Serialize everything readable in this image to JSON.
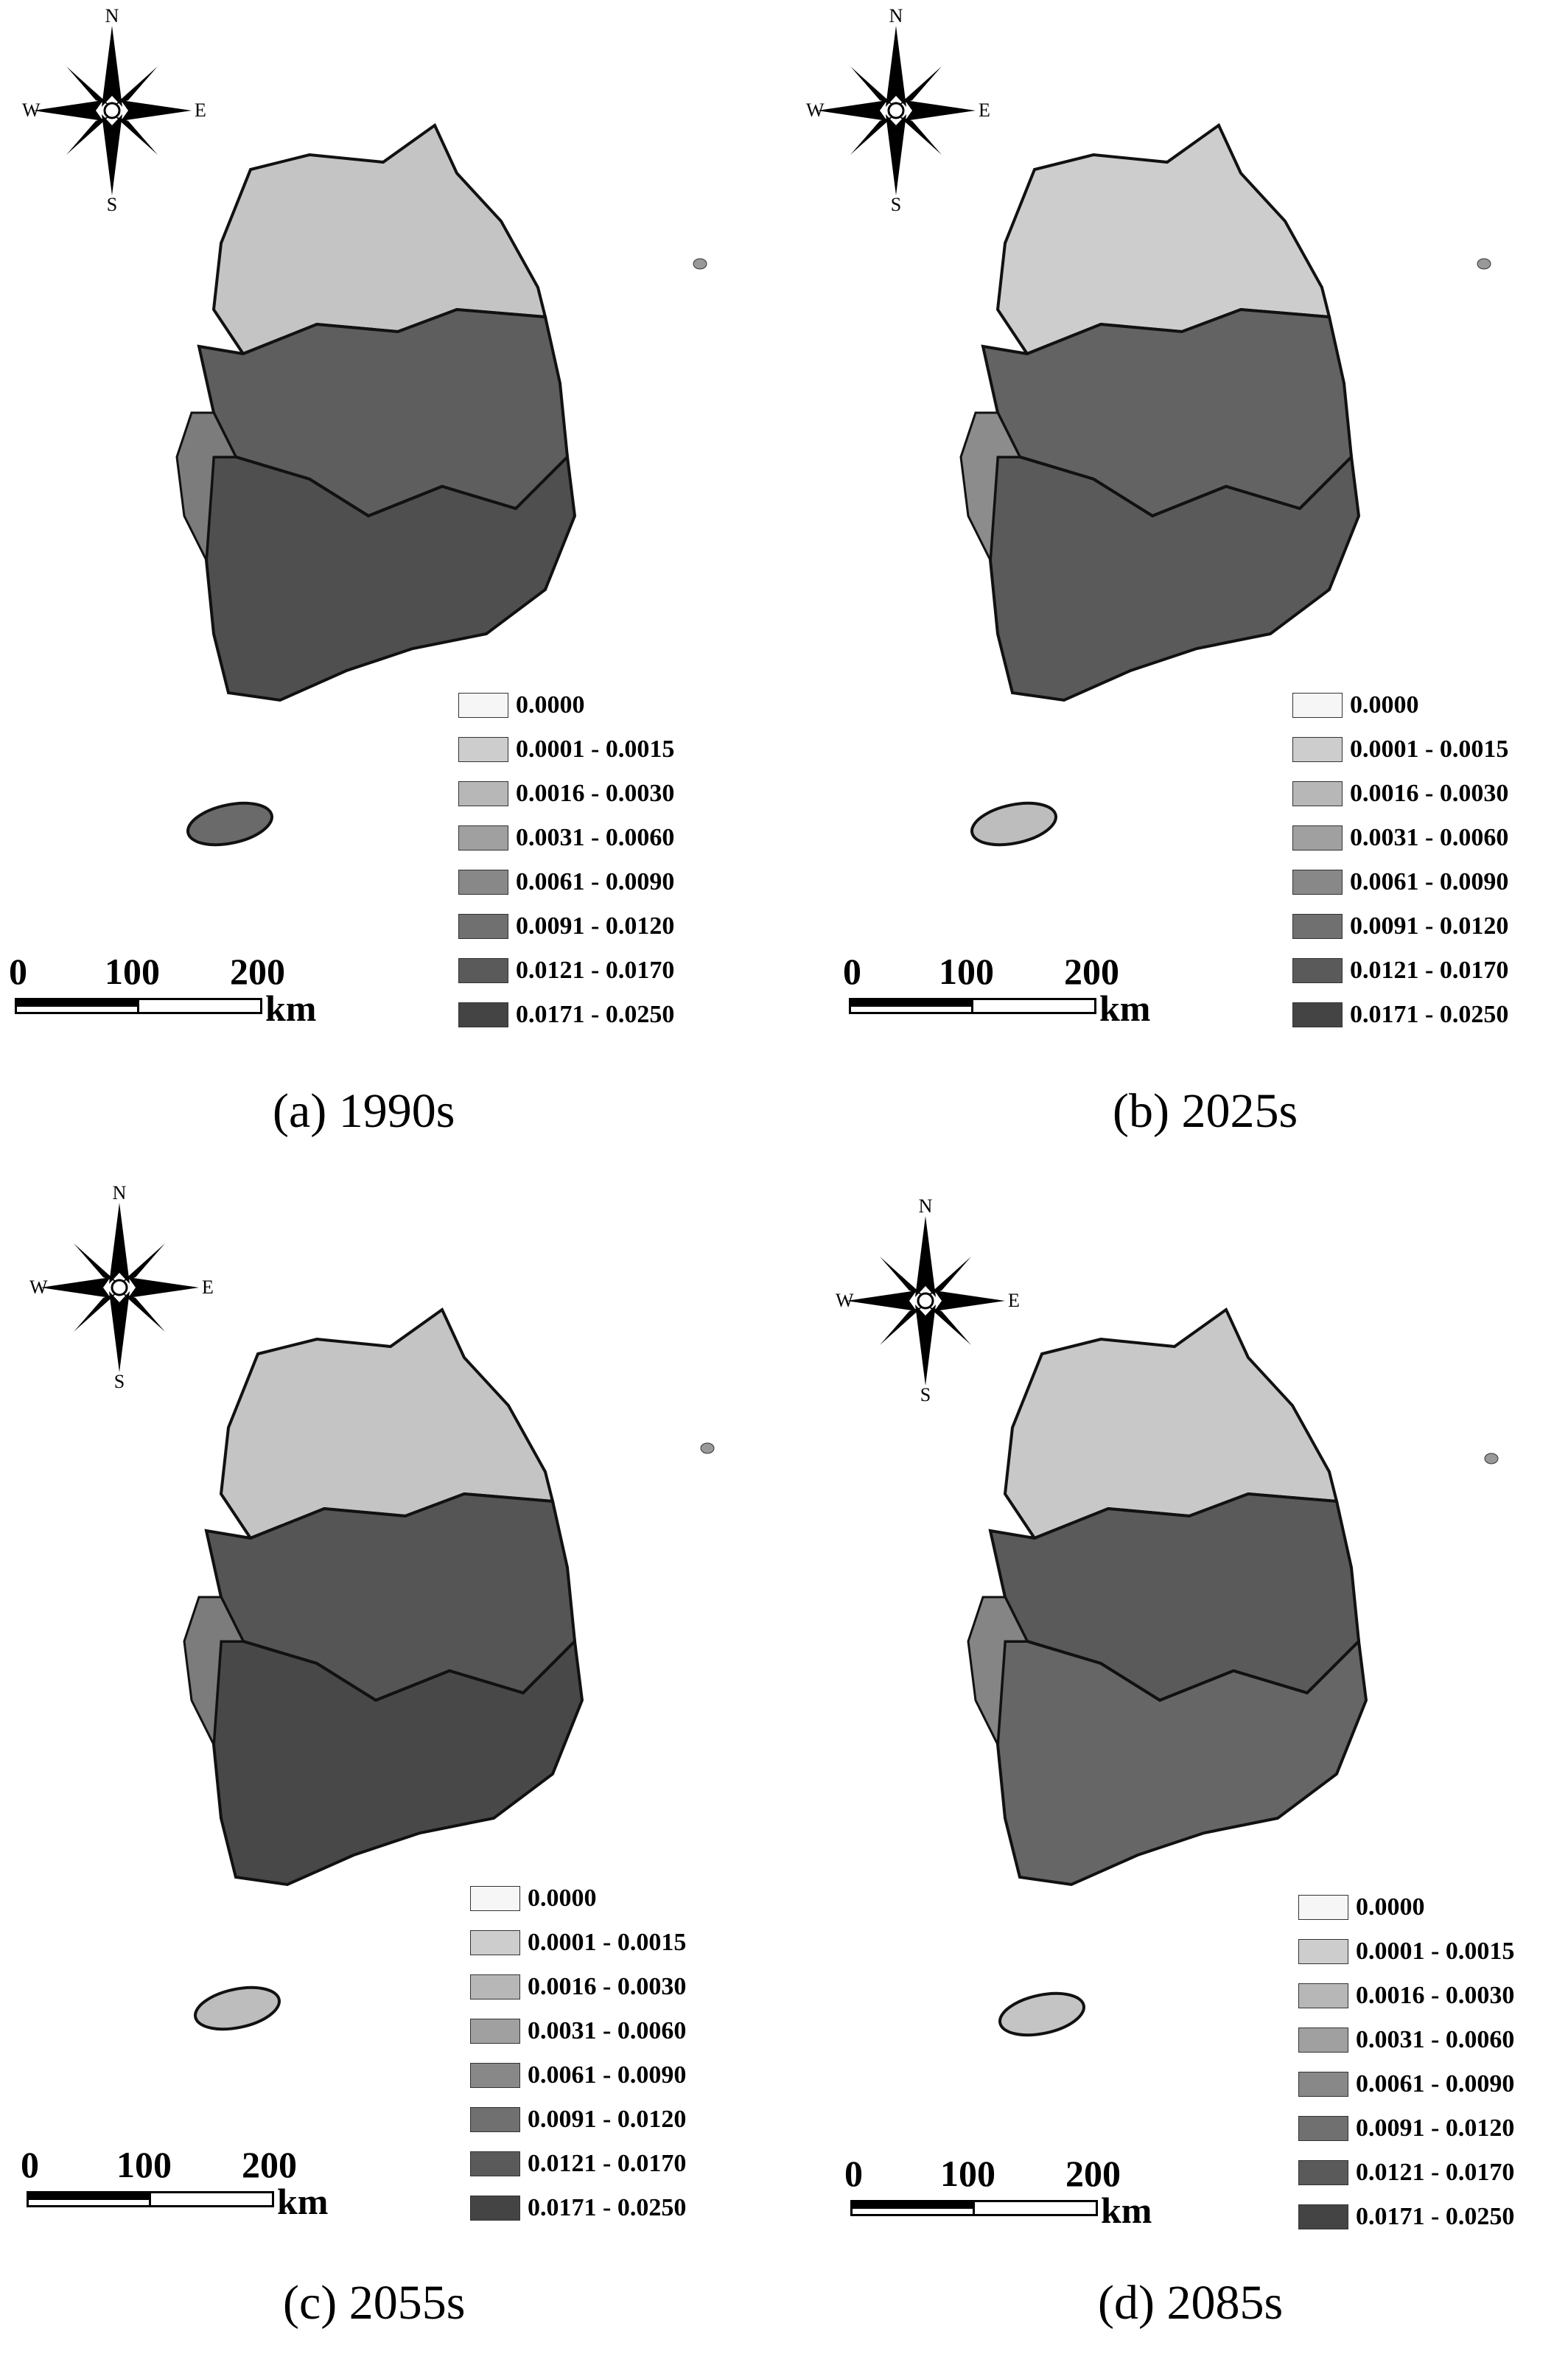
{
  "compass": {
    "north": "N",
    "south": "S",
    "east": "E",
    "west": "W"
  },
  "legend_classes": [
    {
      "label": "0.0000",
      "color": "#f6f6f6"
    },
    {
      "label": "0.0001 - 0.0015",
      "color": "#cdcdcd"
    },
    {
      "label": "0.0016 - 0.0030",
      "color": "#b7b7b7"
    },
    {
      "label": "0.0031 - 0.0060",
      "color": "#a0a0a0"
    },
    {
      "label": "0.0061 - 0.0090",
      "color": "#888888"
    },
    {
      "label": "0.0091 - 0.0120",
      "color": "#707070"
    },
    {
      "label": "0.0121 - 0.0170",
      "color": "#5a5a5a"
    },
    {
      "label": "0.0171 - 0.0250",
      "color": "#444444"
    }
  ],
  "scale_bar": {
    "ticks": [
      "0",
      "100",
      "200"
    ],
    "unit": "km"
  },
  "panels": [
    {
      "caption": "(a) 1990s",
      "region_fill": "#7c7c7c",
      "north_fill": "#c4c4c4",
      "center_fill": "#5e5e5e",
      "south_fill": "#4f4f4f",
      "jeju_fill": "#6a6a6a"
    },
    {
      "caption": "(b) 2025s",
      "region_fill": "#8c8c8c",
      "north_fill": "#cdcdcd",
      "center_fill": "#636363",
      "south_fill": "#5a5a5a",
      "jeju_fill": "#bdbdbd"
    },
    {
      "caption": "(c) 2055s",
      "region_fill": "#7c7c7c",
      "north_fill": "#c4c4c4",
      "center_fill": "#555555",
      "south_fill": "#484848",
      "jeju_fill": "#bdbdbd"
    },
    {
      "caption": "(d) 2085s",
      "region_fill": "#858585",
      "north_fill": "#c8c8c8",
      "center_fill": "#5a5a5a",
      "south_fill": "#666666",
      "jeju_fill": "#c4c4c4"
    }
  ]
}
